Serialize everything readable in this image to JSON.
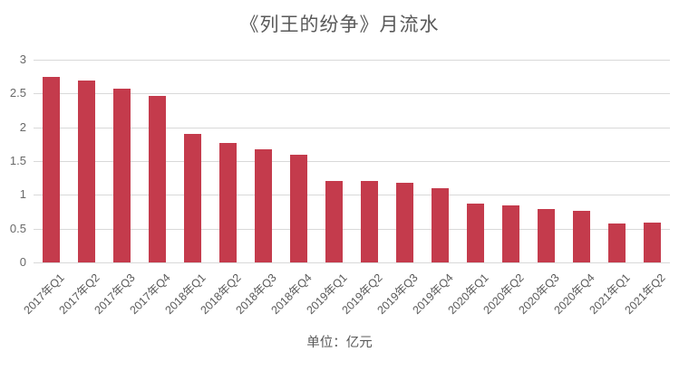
{
  "chart_data": {
    "type": "bar",
    "title": "《列王的纷争》月流水",
    "unit_note": "单位：亿元",
    "categories": [
      "2017年Q1",
      "2017年Q2",
      "2017年Q3",
      "2017年Q4",
      "2018年Q1",
      "2018年Q2",
      "2018年Q3",
      "2018年Q4",
      "2019年Q1",
      "2019年Q2",
      "2019年Q3",
      "2019年Q4",
      "2020年Q1",
      "2020年Q2",
      "2020年Q3",
      "2020年Q4",
      "2021年Q1",
      "2021年Q2"
    ],
    "values": [
      2.74,
      2.69,
      2.57,
      2.46,
      1.9,
      1.77,
      1.68,
      1.6,
      1.21,
      1.21,
      1.18,
      1.1,
      0.87,
      0.85,
      0.79,
      0.77,
      0.58,
      0.59
    ],
    "xlabel": "",
    "ylabel": "",
    "ylim": [
      0,
      3
    ],
    "ytick_labels": [
      "0",
      "0.5",
      "1",
      "1.5",
      "2",
      "2.5",
      "3"
    ],
    "grid": true,
    "legend_position": "none",
    "x_label_rotation_deg": 45,
    "colors": {
      "bar": "#c43b4c",
      "grid": "#d9d9d9",
      "title_text": "#595959",
      "axis_text": "#696969"
    }
  }
}
